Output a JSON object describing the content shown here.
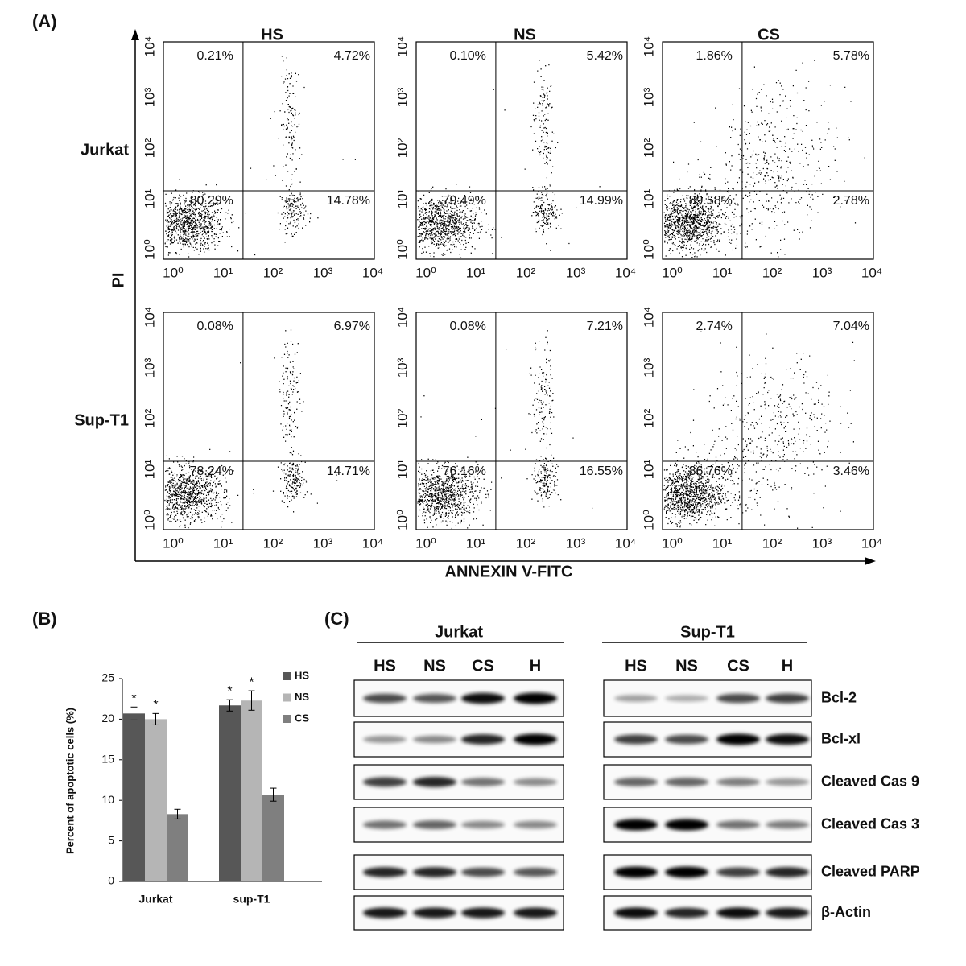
{
  "panel_a": {
    "label": "(A)",
    "columns": [
      "HS",
      "NS",
      "CS"
    ],
    "rows": [
      "Jurkat",
      "Sup-T1"
    ],
    "y_label": "PI",
    "x_label": "ANNEXIN V-FITC",
    "ticks": [
      "10⁰",
      "10¹",
      "10²",
      "10³",
      "10⁴"
    ],
    "quadrants": [
      [
        [
          "0.21%",
          "4.72%",
          "80.29%",
          "14.78%"
        ],
        [
          "0.10%",
          "5.42%",
          "79.49%",
          "14.99%"
        ],
        [
          "1.86%",
          "5.78%",
          "89.58%",
          "2.78%"
        ]
      ],
      [
        [
          "0.08%",
          "6.97%",
          "78.24%",
          "14.71%"
        ],
        [
          "0.08%",
          "7.21%",
          "76.16%",
          "16.55%"
        ],
        [
          "2.74%",
          "7.04%",
          "86.76%",
          "3.46%"
        ]
      ]
    ]
  },
  "chart_data": {
    "type": "bar",
    "label": "(B)",
    "y_label": "Percent of apoptotic cells (%)",
    "categories": [
      "Jurkat",
      "sup-T1"
    ],
    "series": [
      {
        "name": "HS",
        "color": "#575757",
        "values": [
          20.7,
          21.7
        ],
        "errors": [
          0.8,
          0.7
        ],
        "annotations": [
          "*",
          "*"
        ]
      },
      {
        "name": "NS",
        "color": "#b5b5b5",
        "values": [
          20.0,
          22.3
        ],
        "errors": [
          0.7,
          1.2
        ],
        "annotations": [
          "*",
          "*"
        ]
      },
      {
        "name": "CS",
        "color": "#7f7f7f",
        "values": [
          8.3,
          10.7
        ],
        "errors": [
          0.6,
          0.8
        ]
      }
    ],
    "ylim": [
      0,
      25
    ],
    "yticks": [
      0,
      5,
      10,
      15,
      20,
      25
    ],
    "legend": "upper right"
  },
  "panel_c": {
    "label": "(C)",
    "groups": [
      {
        "name": "Jurkat",
        "lanes": [
          "HS",
          "NS",
          "CS",
          "H"
        ]
      },
      {
        "name": "Sup-T1",
        "lanes": [
          "HS",
          "NS",
          "CS",
          "H"
        ]
      }
    ],
    "proteins": [
      "Bcl-2",
      "Bcl-xl",
      "Cleaved Cas 9",
      "Cleaved Cas 3",
      "Cleaved PARP",
      "β-Actin"
    ]
  }
}
